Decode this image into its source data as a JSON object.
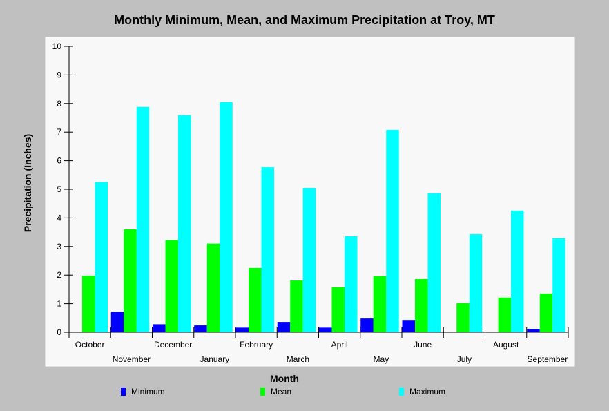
{
  "chart_data": {
    "type": "bar",
    "title": "Monthly Minimum, Mean, and Maximum Precipitation at Troy, MT",
    "xlabel": "Month",
    "ylabel": "Precipitation (Inches)",
    "ylim": [
      0,
      10
    ],
    "yticks": [
      "0",
      "1",
      "2",
      "3",
      "4",
      "5",
      "6",
      "7",
      "8",
      "9",
      "10"
    ],
    "grid": false,
    "legend_position": "bottom",
    "categories": [
      "October",
      "November",
      "December",
      "January",
      "February",
      "March",
      "April",
      "May",
      "June",
      "July",
      "August",
      "September"
    ],
    "series": [
      {
        "name": "Minimum",
        "color": "#0000ff",
        "values": [
          0.0,
          0.72,
          0.28,
          0.24,
          0.16,
          0.36,
          0.16,
          0.48,
          0.43,
          0.0,
          0.0,
          0.11
        ]
      },
      {
        "name": "Mean",
        "color": "#00ff00",
        "values": [
          1.98,
          3.6,
          3.22,
          3.1,
          2.25,
          1.81,
          1.57,
          1.96,
          1.86,
          1.02,
          1.21,
          1.35
        ]
      },
      {
        "name": "Maximum",
        "color": "#00ffff",
        "values": [
          5.25,
          7.88,
          7.59,
          8.05,
          5.77,
          5.05,
          3.36,
          7.08,
          4.86,
          3.43,
          4.25,
          3.29
        ]
      }
    ]
  }
}
